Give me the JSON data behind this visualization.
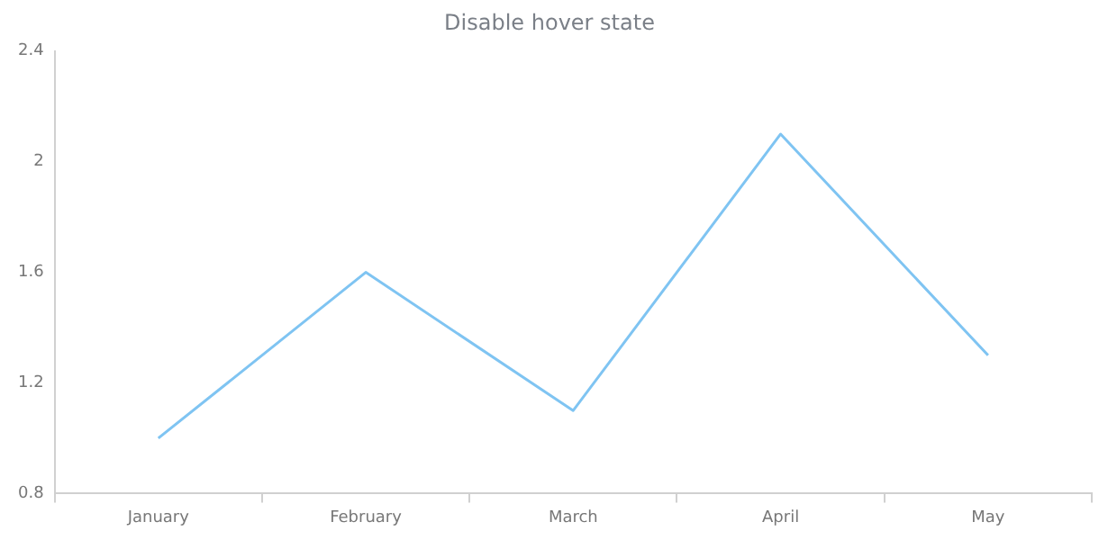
{
  "chart_data": {
    "type": "line",
    "title": "Disable hover state",
    "categories": [
      "January",
      "February",
      "March",
      "April",
      "May"
    ],
    "series": [
      {
        "color": "#7fc4f2",
        "values": [
          1.0,
          1.6,
          1.1,
          2.1,
          1.3
        ]
      }
    ],
    "ylim": [
      0.8,
      2.4
    ],
    "yticks": [
      0.8,
      1.2,
      1.6,
      2,
      2.4
    ],
    "grid": false,
    "legend": false,
    "marker": "none",
    "line_style": "solid"
  }
}
